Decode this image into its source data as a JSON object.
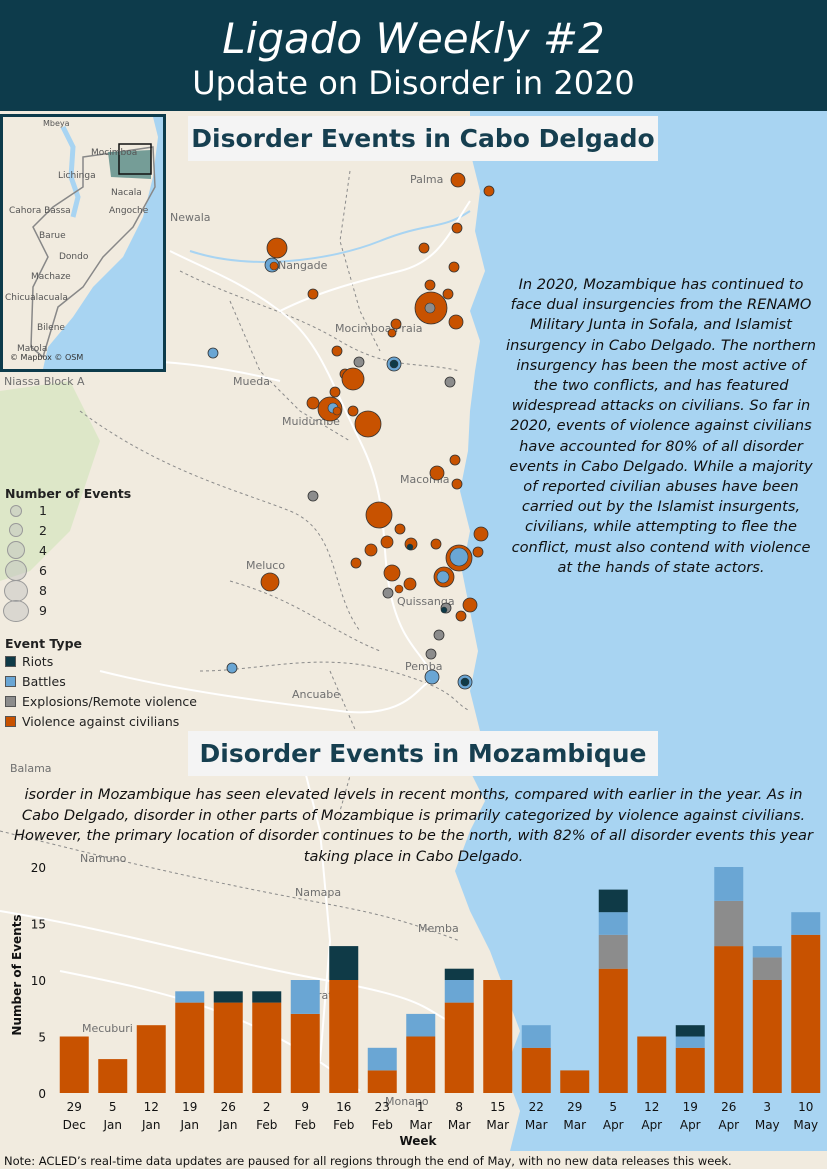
{
  "header": {
    "title": "Ligado Weekly #2",
    "subtitle": "Update on Disorder in 2020"
  },
  "cabo_section": {
    "title": "Disorder Events in Cabo Delgado",
    "text": "In 2020, Mozambique has continued to face dual insurgencies from the RENAMO Military Junta in Sofala, and Islamist insurgency in Cabo Delgado. The northern insurgency has been the most active of the two conflicts, and has featured widespread attacks on civilians. So far in 2020, events of violence against civilians have accounted for 80% of all disorder events in Cabo Delgado. While a majority of reported civilian abuses have been carried out by the Islamist insurgents, civilians, while attempting to flee the conflict, must also contend with violence at the hands of state actors."
  },
  "mozambique_section": {
    "title": "Disorder Events in Mozambique",
    "text": "isorder in Mozambique has seen elevated levels in recent months, compared with earlier in the year. As in Cabo Delgado, disorder in other parts of Mozambique is primarily categorized by violence against civilians. However, the primary location of disorder continues to be the north, with 82% of all disorder events this year taking place in Cabo Delgado."
  },
  "inset_map": {
    "credit": "© Mapbox © OSM",
    "labels": [
      "Mbeya",
      "Mocimboa",
      "Lichinga",
      "Nacala",
      "Angoche",
      "Cahora Bassa",
      "Barue",
      "Dondo",
      "Machaze",
      "Chicualacuala",
      "Bilene",
      "Matola"
    ]
  },
  "map_labels": {
    "palma": "Palma",
    "newala": "Newala",
    "nangade": "Nangade",
    "mocimboa": "Mocimboa Praia",
    "mueda": "Mueda",
    "muidumbe": "Muidumbe",
    "macomia": "Macomia",
    "meluco": "Meluco",
    "quissanga": "Quissanga",
    "pemba": "Pemba",
    "ancuabe": "Ancuabe",
    "niassa": "Niassa Block A",
    "balama": "Balama",
    "namuno": "Namuno",
    "namapa": "Namapa",
    "memba": "Memba",
    "mecuburi": "Mecuburi",
    "erati": "Erati",
    "monapo": "Monapo"
  },
  "legend": {
    "size_title": "Number of Events",
    "sizes": [
      "1",
      "2",
      "4",
      "6",
      "8",
      "9"
    ],
    "type_title": "Event Type",
    "types": [
      {
        "label": "Riots",
        "color": "#0f3a47"
      },
      {
        "label": "Battles",
        "color": "#6aa6d4"
      },
      {
        "label": "Explosions/Remote violence",
        "color": "#8c8c8c"
      },
      {
        "label": "Violence against civilians",
        "color": "#c85200"
      }
    ]
  },
  "chart_data": {
    "type": "bar",
    "stacked": true,
    "xlabel": "Week",
    "ylabel": "Number of Events",
    "ylim": [
      0,
      20
    ],
    "yticks": [
      0,
      5,
      10,
      15,
      20
    ],
    "categories": [
      [
        "29",
        "Dec"
      ],
      [
        "5",
        "Jan"
      ],
      [
        "12",
        "Jan"
      ],
      [
        "19",
        "Jan"
      ],
      [
        "26",
        "Jan"
      ],
      [
        "2",
        "Feb"
      ],
      [
        "9",
        "Feb"
      ],
      [
        "16",
        "Feb"
      ],
      [
        "23",
        "Feb"
      ],
      [
        "1",
        "Mar"
      ],
      [
        "8",
        "Mar"
      ],
      [
        "15",
        "Mar"
      ],
      [
        "22",
        "Mar"
      ],
      [
        "29",
        "Mar"
      ],
      [
        "5",
        "Apr"
      ],
      [
        "12",
        "Apr"
      ],
      [
        "19",
        "Apr"
      ],
      [
        "26",
        "Apr"
      ],
      [
        "3",
        "May"
      ],
      [
        "10",
        "May"
      ]
    ],
    "series": [
      {
        "name": "Violence against civilians",
        "color": "#c85200",
        "values": [
          5,
          3,
          6,
          8,
          8,
          8,
          7,
          10,
          2,
          5,
          8,
          10,
          4,
          2,
          11,
          5,
          4,
          13,
          10,
          14
        ]
      },
      {
        "name": "Explosions/Remote violence",
        "color": "#8c8c8c",
        "values": [
          0,
          0,
          0,
          0,
          0,
          0,
          0,
          0,
          0,
          0,
          0,
          0,
          0,
          0,
          3,
          0,
          0,
          4,
          2,
          0
        ]
      },
      {
        "name": "Battles",
        "color": "#6aa6d4",
        "values": [
          0,
          0,
          0,
          1,
          0,
          0,
          3,
          0,
          2,
          2,
          2,
          0,
          2,
          0,
          2,
          0,
          1,
          3,
          1,
          2
        ]
      },
      {
        "name": "Riots",
        "color": "#0f3a47",
        "values": [
          0,
          0,
          0,
          0,
          1,
          1,
          0,
          3,
          0,
          0,
          1,
          0,
          0,
          0,
          2,
          0,
          1,
          0,
          0,
          0
        ]
      }
    ]
  },
  "footnote": "Note: ACLED’s real-time data updates are paused for all regions through the end of May, with no new data releases this week."
}
